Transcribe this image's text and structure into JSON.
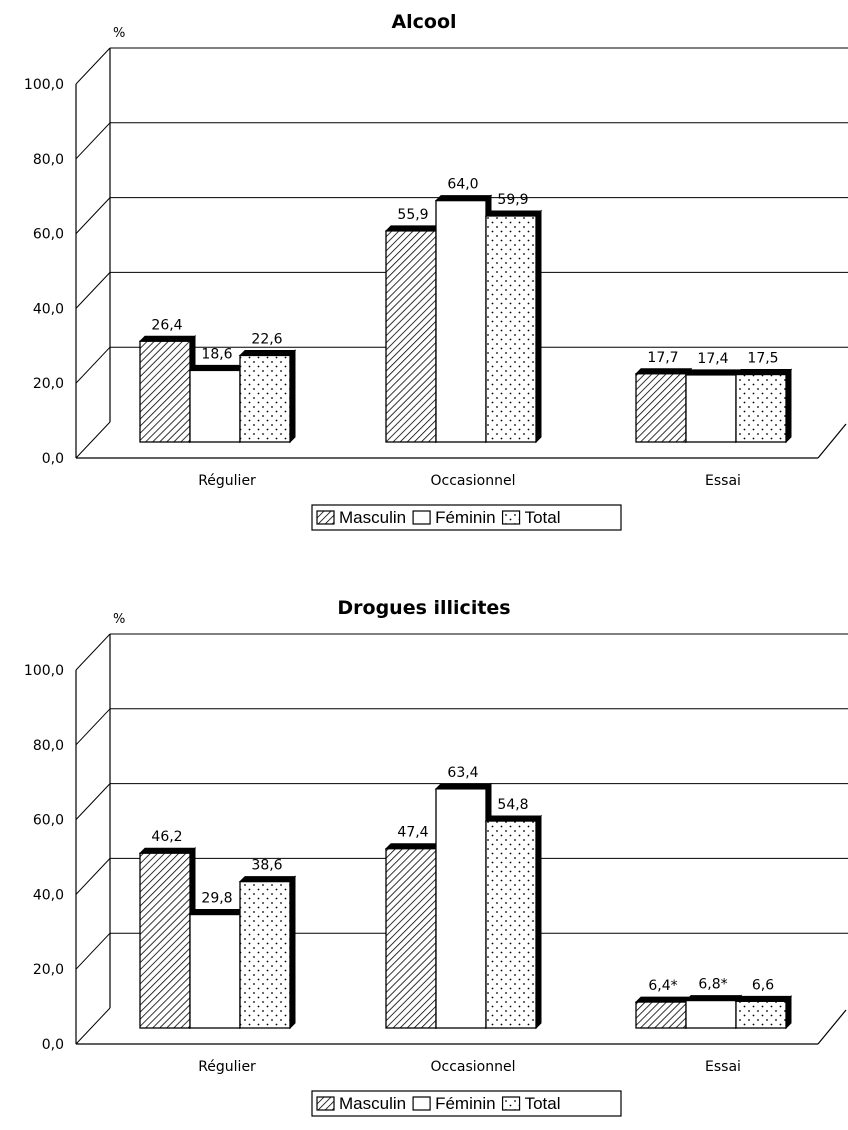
{
  "chart_data": [
    {
      "type": "bar",
      "title": "Alcool",
      "unit": "%",
      "categories": [
        "Régulier",
        "Occasionnel",
        "Essai"
      ],
      "y_ticks": [
        "0,0",
        "20,0",
        "40,0",
        "60,0",
        "80,0",
        "100,0"
      ],
      "ylim": [
        0,
        100
      ],
      "grid": true,
      "legend_position": "bottom",
      "series": [
        {
          "name": "Masculin",
          "pattern": "hatched",
          "values": [
            26.4,
            55.9,
            17.7
          ],
          "labels": [
            "26,4",
            "55,9",
            "17,7"
          ]
        },
        {
          "name": "Féminin",
          "pattern": "white",
          "values": [
            18.6,
            64.0,
            17.4
          ],
          "labels": [
            "18,6",
            "64,0",
            "17,4"
          ]
        },
        {
          "name": "Total",
          "pattern": "dotted",
          "values": [
            22.6,
            59.9,
            17.5
          ],
          "labels": [
            "22,6",
            "59,9",
            "17,5"
          ]
        }
      ]
    },
    {
      "type": "bar",
      "title": "Drogues illicites",
      "unit": "%",
      "categories": [
        "Régulier",
        "Occasionnel",
        "Essai"
      ],
      "y_ticks": [
        "0,0",
        "20,0",
        "40,0",
        "60,0",
        "80,0",
        "100,0"
      ],
      "ylim": [
        0,
        100
      ],
      "grid": true,
      "legend_position": "bottom",
      "series": [
        {
          "name": "Masculin",
          "pattern": "hatched",
          "values": [
            46.2,
            47.4,
            6.4
          ],
          "labels": [
            "46,2",
            "47,4",
            "6,4*"
          ]
        },
        {
          "name": "Féminin",
          "pattern": "white",
          "values": [
            29.8,
            63.4,
            6.8
          ],
          "labels": [
            "29,8",
            "63,4",
            "6,8*"
          ]
        },
        {
          "name": "Total",
          "pattern": "dotted",
          "values": [
            38.6,
            54.8,
            6.6
          ],
          "labels": [
            "38,6",
            "54,8",
            "6,6"
          ]
        }
      ]
    }
  ],
  "colors": {
    "ink": "#000000",
    "fill": "#ffffff"
  }
}
